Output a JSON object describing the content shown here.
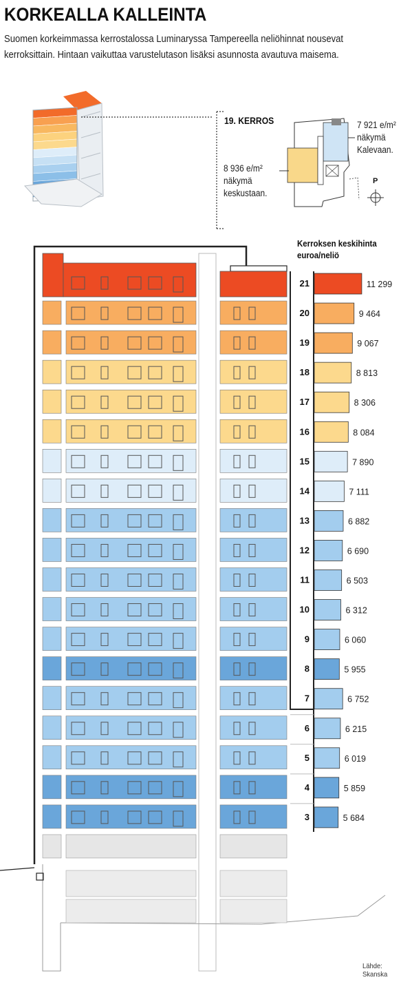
{
  "headline": "KORKEALLA KALLEINTA",
  "intro": "Suomen korkeimmassa kerrostalossa Luminaryssa Tampereella neliöhinnat nousevat kerroksittain. Hintaan vaikuttaa varustelutason  lisäksi asunnosta avautuva maisema.",
  "floor_plan": {
    "title": "19. KERROS",
    "left_note": "8 936 e/m²\nnäkymä\nkeskustaan.",
    "right_note": "7 921 e/m²\nnäkymä\nKalevaan.",
    "north_label": "P",
    "colors": {
      "left_unit": "#f9d88a",
      "right_unit": "#cfe4f5"
    }
  },
  "source": "Lähde: Skanska",
  "chart_data": {
    "type": "bar",
    "orientation": "horizontal",
    "title": "Kerroksen keskihinta\neuroa/neliö",
    "categories": [
      "21",
      "20",
      "19",
      "18",
      "17",
      "16",
      "15",
      "14",
      "13",
      "12",
      "11",
      "10",
      "9",
      "8",
      "7",
      "6",
      "5",
      "4",
      "3"
    ],
    "values": [
      11299,
      9464,
      9067,
      8813,
      8306,
      8084,
      7890,
      7111,
      6882,
      6690,
      6503,
      6312,
      6060,
      5955,
      6752,
      6215,
      6019,
      5859,
      5684
    ],
    "value_labels": [
      "11 299",
      "9 464",
      "9 067",
      "8 813",
      "8 306",
      "8 084",
      "7 890",
      "7 111",
      "6 882",
      "6 690",
      "6 503",
      "6 312",
      "6 060",
      "5 955",
      "6 752",
      "6 215",
      "6 019",
      "5 859",
      "5 684"
    ],
    "colors": [
      "#ec4b23",
      "#f8ad60",
      "#f8ad60",
      "#fcd98d",
      "#fcd98d",
      "#fcd98d",
      "#deedf9",
      "#deedf9",
      "#a3cdee",
      "#a3cdee",
      "#a3cdee",
      "#a3cdee",
      "#a3cdee",
      "#6aa6da",
      "#a3cdee",
      "#a3cdee",
      "#a3cdee",
      "#6aa6da",
      "#6aa6da"
    ],
    "xlabel": "",
    "ylabel": ""
  }
}
